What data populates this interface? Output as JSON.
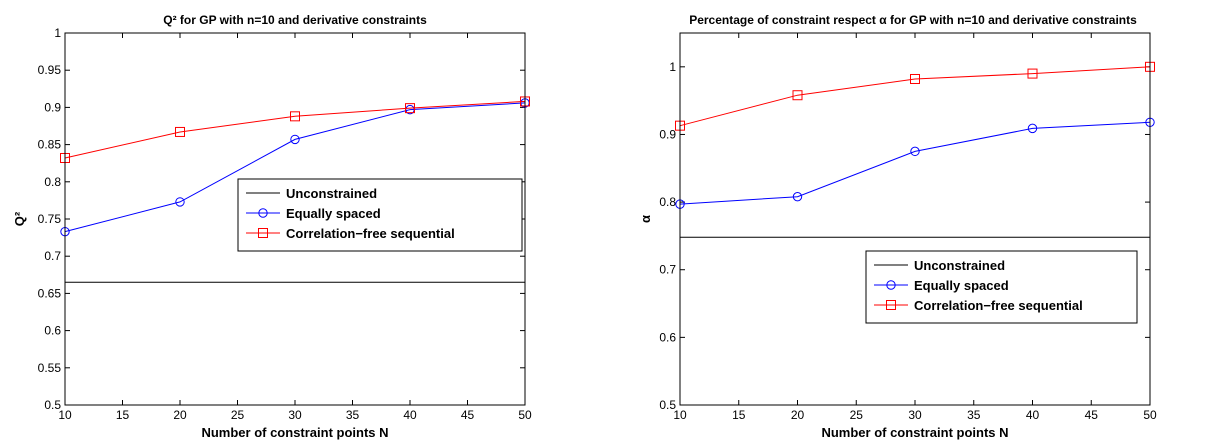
{
  "chart_data": [
    {
      "type": "line",
      "title": "Q² for GP with n=10 and derivative constraints",
      "xlabel": "Number of constraint points N",
      "ylabel": "Q²",
      "xlim": [
        10,
        50
      ],
      "ylim": [
        0.5,
        1
      ],
      "xticks": [
        "10",
        "15",
        "20",
        "25",
        "30",
        "35",
        "40",
        "45",
        "50"
      ],
      "yticks": [
        "0.5",
        "0.55",
        "0.6",
        "0.65",
        "0.7",
        "0.75",
        "0.8",
        "0.85",
        "0.9",
        "0.95",
        "1"
      ],
      "grid": false,
      "legend_position": "center-right",
      "series": [
        {
          "name": "Unconstrained",
          "color": "#000000",
          "marker": "none",
          "x": [
            10,
            50
          ],
          "y": [
            0.665,
            0.665
          ]
        },
        {
          "name": "Equally spaced",
          "color": "#0000ff",
          "marker": "circle",
          "x": [
            10,
            20,
            30,
            40,
            50
          ],
          "y": [
            0.733,
            0.773,
            0.857,
            0.897,
            0.906
          ]
        },
        {
          "name": "Correlation−free sequential",
          "color": "#ff0000",
          "marker": "square",
          "x": [
            10,
            20,
            30,
            40,
            50
          ],
          "y": [
            0.832,
            0.867,
            0.888,
            0.899,
            0.908
          ]
        }
      ]
    },
    {
      "type": "line",
      "title": "Percentage of constraint respect α for GP with n=10 and derivative constraints",
      "xlabel": "Number of constraint points N",
      "ylabel": "α",
      "xlim": [
        10,
        50
      ],
      "ylim": [
        0.5,
        1.05
      ],
      "xticks": [
        "10",
        "15",
        "20",
        "25",
        "30",
        "35",
        "40",
        "45",
        "50"
      ],
      "yticks": [
        "0.5",
        "0.6",
        "0.7",
        "0.8",
        "0.9",
        "1"
      ],
      "grid": false,
      "legend_position": "lower-right",
      "series": [
        {
          "name": "Unconstrained",
          "color": "#000000",
          "marker": "none",
          "x": [
            10,
            50
          ],
          "y": [
            0.748,
            0.748
          ]
        },
        {
          "name": "Equally spaced",
          "color": "#0000ff",
          "marker": "circle",
          "x": [
            10,
            20,
            30,
            40,
            50
          ],
          "y": [
            0.797,
            0.808,
            0.875,
            0.909,
            0.918
          ]
        },
        {
          "name": "Correlation−free sequential",
          "color": "#ff0000",
          "marker": "square",
          "x": [
            10,
            20,
            30,
            40,
            50
          ],
          "y": [
            0.913,
            0.958,
            0.982,
            0.99,
            1.0
          ]
        }
      ]
    }
  ]
}
